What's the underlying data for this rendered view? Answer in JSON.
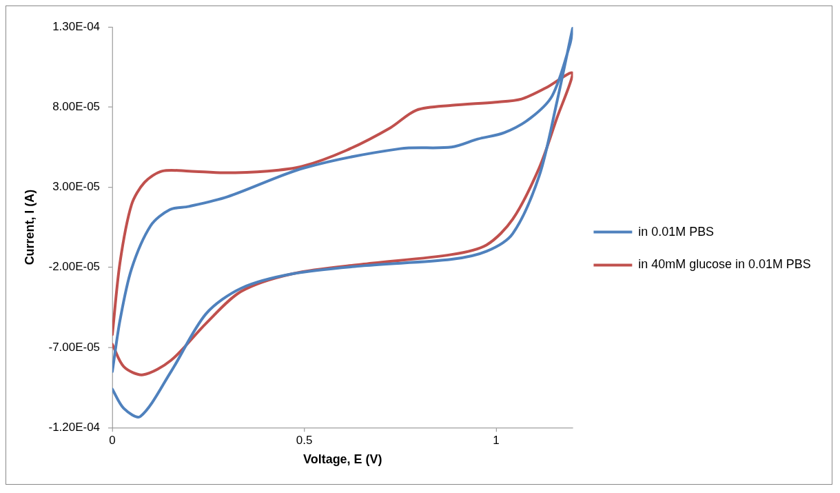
{
  "chart_data": {
    "type": "line",
    "xlabel": "Voltage, E (V)",
    "ylabel": "Current, I (A)",
    "xlim": [
      0,
      1.2
    ],
    "xticks": [
      0,
      0.5,
      1
    ],
    "ylim": [
      -0.00012,
      0.00013
    ],
    "yticks": [
      {
        "value": -0.00012,
        "label": "-1.20E-04"
      },
      {
        "value": -7e-05,
        "label": "-7.00E-05"
      },
      {
        "value": -2e-05,
        "label": "-2.00E-05"
      },
      {
        "value": 3e-05,
        "label": "3.00E-05"
      },
      {
        "value": 8e-05,
        "label": "8.00E-05"
      },
      {
        "value": 0.00013,
        "label": "1.30E-04"
      }
    ],
    "grid": false,
    "legend": "right",
    "marker": "none",
    "line_style": "solid",
    "series": [
      {
        "name": "in 0.01M PBS",
        "color": "#4f81bd",
        "x": [
          0,
          0.03,
          0.073,
          0.153,
          0.244,
          0.336,
          0.47,
          0.655,
          0.884,
          0.975,
          1.043,
          1.112,
          1.158,
          1.199,
          1.192,
          1.146,
          1.089,
          1.021,
          0.952,
          0.884,
          0.75,
          0.5,
          0.3,
          0.2,
          0.15,
          0.1,
          0.05,
          0.02,
          0
        ],
        "values": [
          -9.6e-05,
          -0.000108,
          -0.000113,
          -8.5e-05,
          -4.9e-05,
          -3.3e-05,
          -2.4e-05,
          -1.9e-05,
          -1.5e-05,
          -1e-05,
          1e-06,
          3.7e-05,
          8.3e-05,
          0.000129,
          0.000119,
          8.7e-05,
          7.3e-05,
          6.4e-05,
          6e-05,
          5.5e-05,
          5.4e-05,
          4.2e-05,
          2.4e-05,
          1.8e-05,
          1.6e-05,
          6e-06,
          -2.1e-05,
          -5.3e-05,
          -8.5e-05
        ]
      },
      {
        "name": "in 40mM glucose in 0.01M PBS",
        "color": "#c0504d",
        "x": [
          0,
          0.03,
          0.08,
          0.153,
          0.244,
          0.336,
          0.47,
          0.655,
          0.884,
          0.975,
          1.043,
          1.112,
          1.158,
          1.199,
          1.13,
          1.066,
          0.998,
          0.884,
          0.792,
          0.724,
          0.61,
          0.495,
          0.404,
          0.29,
          0.2,
          0.13,
          0.084,
          0.05,
          0.02,
          0
        ],
        "values": [
          -6.8e-05,
          -8.2e-05,
          -8.7e-05,
          -7.8e-05,
          -5.5e-05,
          -3.5e-05,
          -2.4e-05,
          -1.8e-05,
          -1.2e-05,
          -6e-06,
          1e-05,
          4.2e-05,
          7.3e-05,
          0.000101,
          9.2e-05,
          8.5e-05,
          8.3e-05,
          8.1e-05,
          7.8e-05,
          6.7e-05,
          5.3e-05,
          4.3e-05,
          4e-05,
          3.9e-05,
          4e-05,
          4e-05,
          3.3e-05,
          1.9e-05,
          -1.7e-05,
          -6.2e-05
        ]
      }
    ]
  }
}
